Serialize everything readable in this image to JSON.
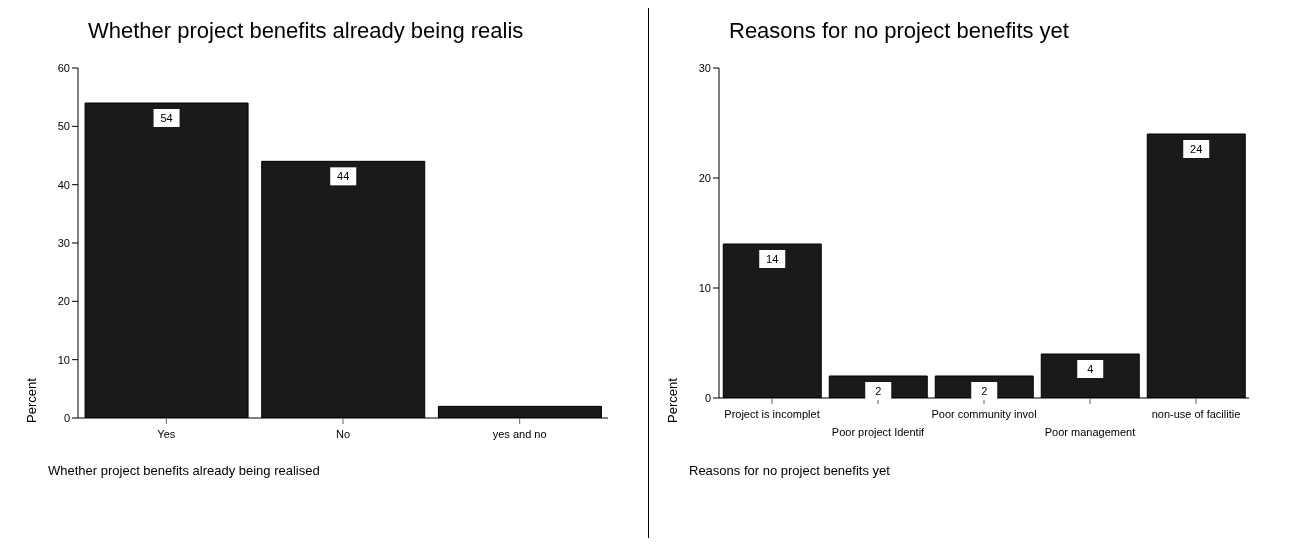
{
  "chart_data": [
    {
      "type": "bar",
      "title": "Whether project benefits already being realis",
      "xlabel": "Whether project benefits already being realised",
      "ylabel": "Percent",
      "categories": [
        "Yes",
        "No",
        "yes and no"
      ],
      "values": [
        54,
        44,
        2
      ],
      "value_labels": [
        "54",
        "44",
        null
      ],
      "color": "#1a1a1a",
      "ylim": [
        0,
        60
      ],
      "yticks": [
        0,
        10,
        20,
        30,
        40,
        50,
        60
      ],
      "grid": false,
      "legend": false
    },
    {
      "type": "bar",
      "title": "Reasons for no project benefits yet",
      "xlabel": "Reasons for no project benefits yet",
      "ylabel": "Percent",
      "categories": [
        "Project is incomplet",
        "Poor project Identif",
        "Poor community invol",
        "Poor management",
        "non-use of facilitie"
      ],
      "values": [
        14,
        2,
        2,
        4,
        24
      ],
      "data_labels": true,
      "color": "#1a1a1a",
      "ylim": [
        0,
        30
      ],
      "yticks": [
        0,
        10,
        20,
        30
      ],
      "grid": false,
      "legend": false
    }
  ]
}
